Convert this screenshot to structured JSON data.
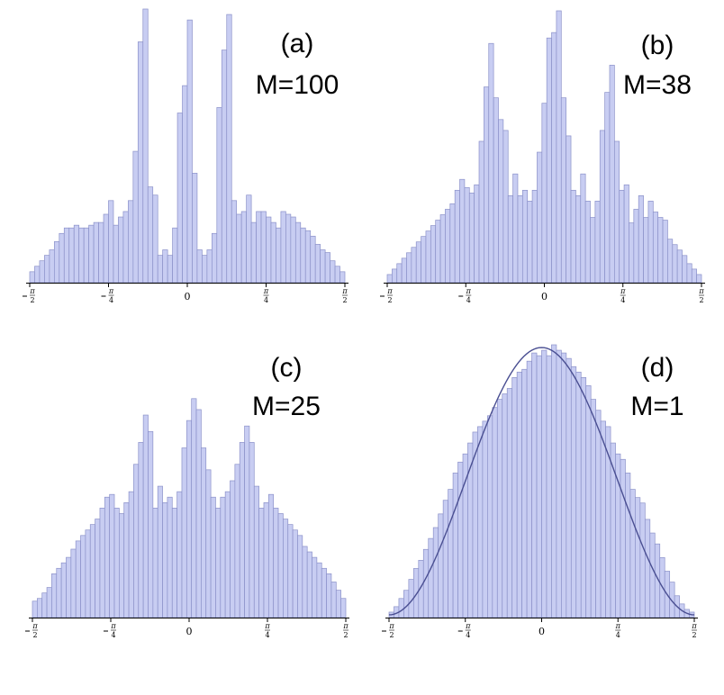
{
  "chart_data": [
    {
      "type": "bar",
      "panel_label": "(a)",
      "annotation": "M=100",
      "xlim": [
        -1.5708,
        1.5708
      ],
      "ylim": [
        0,
        100
      ],
      "x_ticks": [
        "−π/2",
        "−π/4",
        "0",
        "π/4",
        "π/2"
      ],
      "values": [
        4,
        6,
        8,
        10,
        12,
        15,
        18,
        20,
        20,
        21,
        20,
        20,
        21,
        22,
        22,
        25,
        30,
        21,
        24,
        26,
        30,
        48,
        88,
        100,
        35,
        32,
        10,
        12,
        10,
        20,
        62,
        72,
        96,
        40,
        12,
        10,
        12,
        18,
        64,
        85,
        98,
        30,
        25,
        26,
        32,
        22,
        26,
        26,
        24,
        22,
        20,
        26,
        25,
        24,
        22,
        20,
        19,
        17,
        14,
        12,
        11,
        8,
        6,
        4
      ]
    },
    {
      "type": "bar",
      "panel_label": "(b)",
      "annotation": "M=38",
      "xlim": [
        -1.5708,
        1.5708
      ],
      "ylim": [
        0,
        100
      ],
      "x_ticks": [
        "−π/2",
        "−π/4",
        "0",
        "π/4",
        "π/2"
      ],
      "values": [
        3,
        5,
        7,
        9,
        11,
        13,
        15,
        17,
        19,
        21,
        23,
        25,
        27,
        29,
        34,
        38,
        35,
        33,
        36,
        52,
        72,
        88,
        68,
        60,
        56,
        32,
        40,
        32,
        34,
        30,
        34,
        48,
        66,
        90,
        92,
        100,
        68,
        54,
        34,
        32,
        40,
        30,
        24,
        30,
        56,
        70,
        80,
        52,
        34,
        36,
        22,
        27,
        32,
        24,
        30,
        26,
        24,
        23,
        16,
        14,
        12,
        10,
        7,
        5,
        3
      ]
    },
    {
      "type": "bar",
      "panel_label": "(c)",
      "annotation": "M=25",
      "xlim": [
        -1.5708,
        1.5708
      ],
      "ylim": [
        0,
        100
      ],
      "x_ticks": [
        "−π/2",
        "−π/4",
        "0",
        "π/4",
        "π/2"
      ],
      "values": [
        6,
        7,
        9,
        11,
        16,
        18,
        20,
        22,
        25,
        28,
        30,
        32,
        34,
        36,
        40,
        44,
        45,
        40,
        38,
        42,
        46,
        56,
        64,
        74,
        68,
        40,
        48,
        42,
        44,
        40,
        46,
        62,
        72,
        80,
        76,
        62,
        54,
        44,
        40,
        44,
        46,
        50,
        56,
        64,
        70,
        64,
        48,
        40,
        42,
        45,
        40,
        38,
        36,
        34,
        32,
        30,
        26,
        24,
        22,
        20,
        18,
        16,
        13,
        10,
        7
      ]
    },
    {
      "type": "bar",
      "panel_label": "(d)",
      "annotation": "M=1",
      "xlim": [
        -1.5708,
        1.5708
      ],
      "ylim": [
        0,
        100
      ],
      "x_ticks": [
        "−π/2",
        "−π/4",
        "0",
        "π/4",
        "π/2"
      ],
      "series": [
        {
          "values": [
            2,
            4,
            7,
            10,
            14,
            18,
            21,
            25,
            29,
            33,
            38,
            43,
            47,
            53,
            57,
            60,
            64,
            68,
            70,
            72,
            74,
            77,
            80,
            82,
            84,
            88,
            90,
            91,
            94,
            97,
            96,
            98,
            96,
            100,
            98,
            97,
            95,
            92,
            90,
            88,
            85,
            80,
            76,
            72,
            70,
            64,
            60,
            58,
            53,
            47,
            44,
            42,
            36,
            31,
            27,
            22,
            17,
            13,
            8,
            5,
            3,
            2
          ]
        }
      ],
      "fit_curve": {
        "shape": "cosine",
        "peak": 98
      }
    }
  ]
}
